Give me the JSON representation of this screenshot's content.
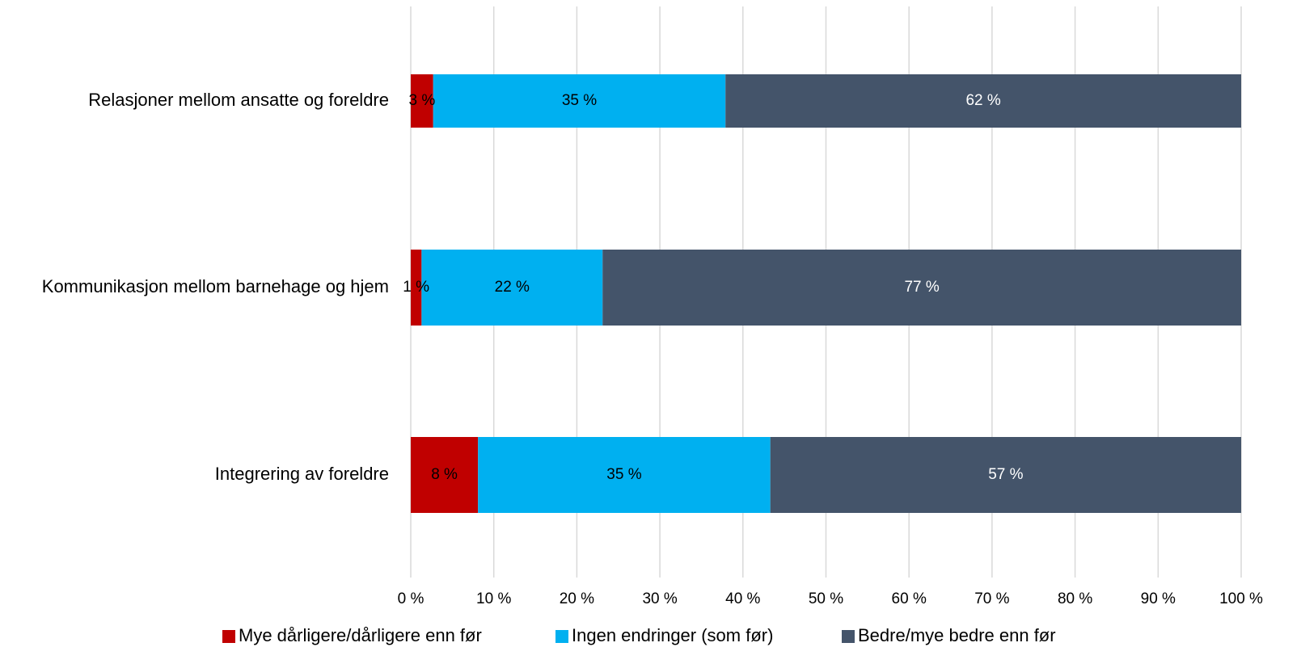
{
  "chart_data": {
    "type": "bar",
    "orientation": "horizontal",
    "stacked": true,
    "categories": [
      "Relasjoner mellom ansatte og foreldre",
      "Kommunikasjon mellom barnehage og hjem",
      "Integrering av foreldre"
    ],
    "series": [
      {
        "name": "Mye dårligere/dårligere enn før",
        "color": "#c00000",
        "label_color": "#000000",
        "values": [
          2.7,
          1.3,
          8.1
        ],
        "labels": [
          "3 %",
          "1 %",
          "8 %"
        ]
      },
      {
        "name": "Ingen endringer (som  før)",
        "color": "#00b0f0",
        "label_color": "#000000",
        "values": [
          35.2,
          21.8,
          35.2
        ],
        "labels": [
          "35 %",
          "22 %",
          "35 %"
        ]
      },
      {
        "name": "Bedre/mye bedre enn før",
        "color": "#44546a",
        "label_color": "#ffffff",
        "values": [
          62.1,
          76.9,
          56.7
        ],
        "labels": [
          "62 %",
          "77 %",
          "57 %"
        ]
      }
    ],
    "x_ticks": [
      0,
      10,
      20,
      30,
      40,
      50,
      60,
      70,
      80,
      90,
      100
    ],
    "x_tick_labels": [
      "0 %",
      "10 %",
      "20 %",
      "30 %",
      "40 %",
      "50 %",
      "60 %",
      "70 %",
      "80 %",
      "90 %",
      "100 %"
    ],
    "xlim": [
      0,
      100
    ],
    "grid": "vertical",
    "grid_color": "#d9d9d9",
    "legend": "bottom"
  }
}
